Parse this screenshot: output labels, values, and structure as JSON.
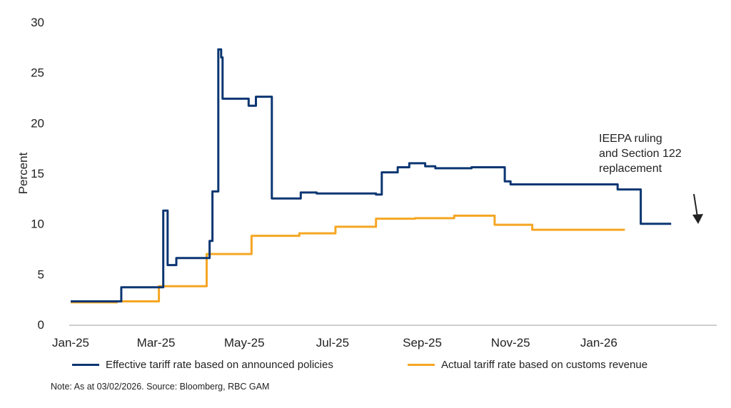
{
  "chart_data": {
    "type": "line",
    "title": "",
    "xlabel": "",
    "ylabel": "Percent",
    "ylim": [
      0,
      30
    ],
    "yticks": [
      "0",
      "5",
      "10",
      "15",
      "20",
      "25",
      "30"
    ],
    "xticks": [
      {
        "label": "Jan-25",
        "date": "2025-01-01"
      },
      {
        "label": "Mar-25",
        "date": "2025-03-01"
      },
      {
        "label": "May-25",
        "date": "2025-05-01"
      },
      {
        "label": "Jul-25",
        "date": "2025-07-01"
      },
      {
        "label": "Sep-25",
        "date": "2025-09-01"
      },
      {
        "label": "Nov-25",
        "date": "2025-11-01"
      },
      {
        "label": "Jan-26",
        "date": "2026-01-01"
      }
    ],
    "grid": false,
    "legend_placement": "bottom",
    "series": [
      {
        "name": "Effective tariff rate based on announced policies",
        "color": "#0b3672",
        "step": true,
        "points": [
          [
            "2025-01-01",
            2.3
          ],
          [
            "2025-02-05",
            3.7
          ],
          [
            "2025-03-06",
            11.3
          ],
          [
            "2025-03-09",
            5.9
          ],
          [
            "2025-03-15",
            6.6
          ],
          [
            "2025-04-07",
            8.3
          ],
          [
            "2025-04-09",
            13.2
          ],
          [
            "2025-04-13",
            27.3
          ],
          [
            "2025-04-15",
            26.5
          ],
          [
            "2025-04-16",
            22.4
          ],
          [
            "2025-05-04",
            21.7
          ],
          [
            "2025-05-09",
            22.6
          ],
          [
            "2025-05-20",
            12.5
          ],
          [
            "2025-06-09",
            13.1
          ],
          [
            "2025-06-20",
            13.0
          ],
          [
            "2025-07-31",
            12.9
          ],
          [
            "2025-08-04",
            15.1
          ],
          [
            "2025-08-15",
            15.6
          ],
          [
            "2025-08-23",
            16.0
          ],
          [
            "2025-09-03",
            15.7
          ],
          [
            "2025-09-10",
            15.5
          ],
          [
            "2025-10-05",
            15.6
          ],
          [
            "2025-10-28",
            14.2
          ],
          [
            "2025-11-01",
            13.9
          ],
          [
            "2026-01-14",
            13.4
          ],
          [
            "2026-01-30",
            10.0
          ],
          [
            "2026-02-20",
            10.0
          ]
        ]
      },
      {
        "name": "Actual tariff rate based on customs revenue",
        "color": "#f5a623",
        "step": true,
        "points": [
          [
            "2025-01-01",
            2.2
          ],
          [
            "2025-02-02",
            2.3
          ],
          [
            "2025-03-03",
            3.8
          ],
          [
            "2025-04-05",
            7.0
          ],
          [
            "2025-05-06",
            8.8
          ],
          [
            "2025-06-08",
            9.05
          ],
          [
            "2025-07-03",
            9.7
          ],
          [
            "2025-07-31",
            10.5
          ],
          [
            "2025-08-27",
            10.55
          ],
          [
            "2025-09-23",
            10.8
          ],
          [
            "2025-10-21",
            9.9
          ],
          [
            "2025-11-16",
            9.4
          ],
          [
            "2026-01-19",
            9.4
          ]
        ]
      }
    ],
    "annotations": [
      {
        "lines": [
          "IEEPA ruling",
          "and Section 122",
          "replacement"
        ],
        "arrow": "down"
      }
    ]
  },
  "note": "Note: As at 03/02/2026. Source: Bloomberg,  RBC GAM"
}
